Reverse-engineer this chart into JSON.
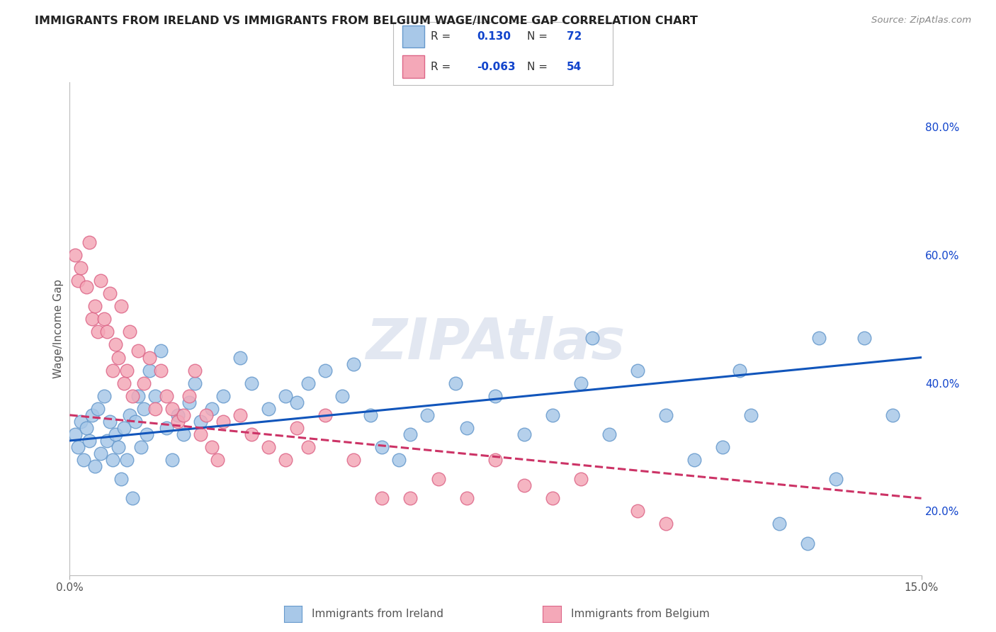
{
  "title": "IMMIGRANTS FROM IRELAND VS IMMIGRANTS FROM BELGIUM WAGE/INCOME GAP CORRELATION CHART",
  "source": "Source: ZipAtlas.com",
  "ylabel": "Wage/Income Gap",
  "watermark": "ZIPAtlas",
  "xlim": [
    0.0,
    15.0
  ],
  "ylim": [
    10.0,
    87.0
  ],
  "yticks_right": [
    20.0,
    40.0,
    60.0,
    80.0
  ],
  "ireland_color": "#a8c8e8",
  "ireland_edge": "#6699cc",
  "ireland_line_color": "#1155bb",
  "ireland_R": 0.13,
  "ireland_N": 72,
  "belgium_color": "#f4a8b8",
  "belgium_edge": "#dd6688",
  "belgium_line_color": "#cc3366",
  "belgium_R": -0.063,
  "belgium_N": 54,
  "background_color": "#ffffff",
  "grid_color": "#dddddd",
  "title_color": "#222222",
  "source_color": "#888888",
  "legend_text_color": "#1144cc",
  "ireland_points_x": [
    0.1,
    0.15,
    0.2,
    0.25,
    0.3,
    0.35,
    0.4,
    0.45,
    0.5,
    0.55,
    0.6,
    0.65,
    0.7,
    0.75,
    0.8,
    0.85,
    0.9,
    0.95,
    1.0,
    1.05,
    1.1,
    1.15,
    1.2,
    1.25,
    1.3,
    1.35,
    1.4,
    1.5,
    1.6,
    1.7,
    1.8,
    1.9,
    2.0,
    2.1,
    2.2,
    2.3,
    2.5,
    2.7,
    3.0,
    3.2,
    3.5,
    3.8,
    4.0,
    4.2,
    4.5,
    4.8,
    5.0,
    5.3,
    5.5,
    5.8,
    6.0,
    6.3,
    6.8,
    7.0,
    7.5,
    8.0,
    8.5,
    9.0,
    9.5,
    10.0,
    10.5,
    11.0,
    11.5,
    12.0,
    12.5,
    13.0,
    13.5,
    14.0,
    14.5,
    9.2,
    13.2,
    11.8
  ],
  "ireland_points_y": [
    32,
    30,
    34,
    28,
    33,
    31,
    35,
    27,
    36,
    29,
    38,
    31,
    34,
    28,
    32,
    30,
    25,
    33,
    28,
    35,
    22,
    34,
    38,
    30,
    36,
    32,
    42,
    38,
    45,
    33,
    28,
    35,
    32,
    37,
    40,
    34,
    36,
    38,
    44,
    40,
    36,
    38,
    37,
    40,
    42,
    38,
    43,
    35,
    30,
    28,
    32,
    35,
    40,
    33,
    38,
    32,
    35,
    40,
    32,
    42,
    35,
    28,
    30,
    35,
    18,
    15,
    25,
    47,
    35,
    47,
    47,
    42
  ],
  "belgium_points_x": [
    0.1,
    0.15,
    0.2,
    0.3,
    0.35,
    0.4,
    0.45,
    0.5,
    0.55,
    0.6,
    0.65,
    0.7,
    0.75,
    0.8,
    0.85,
    0.9,
    0.95,
    1.0,
    1.05,
    1.1,
    1.2,
    1.3,
    1.4,
    1.5,
    1.6,
    1.7,
    1.8,
    1.9,
    2.0,
    2.1,
    2.2,
    2.3,
    2.4,
    2.5,
    2.6,
    2.7,
    3.0,
    3.2,
    3.5,
    3.8,
    4.0,
    4.2,
    4.5,
    5.0,
    5.5,
    6.0,
    6.5,
    7.0,
    7.5,
    8.0,
    8.5,
    9.0,
    10.0,
    10.5
  ],
  "belgium_points_y": [
    60,
    56,
    58,
    55,
    62,
    50,
    52,
    48,
    56,
    50,
    48,
    54,
    42,
    46,
    44,
    52,
    40,
    42,
    48,
    38,
    45,
    40,
    44,
    36,
    42,
    38,
    36,
    34,
    35,
    38,
    42,
    32,
    35,
    30,
    28,
    34,
    35,
    32,
    30,
    28,
    33,
    30,
    35,
    28,
    22,
    22,
    25,
    22,
    28,
    24,
    22,
    25,
    20,
    18
  ],
  "ireland_line_x0": 0.0,
  "ireland_line_y0": 31.0,
  "ireland_line_x1": 15.0,
  "ireland_line_y1": 44.0,
  "belgium_line_x0": 0.0,
  "belgium_line_y0": 35.0,
  "belgium_line_x1": 15.0,
  "belgium_line_y1": 22.0
}
